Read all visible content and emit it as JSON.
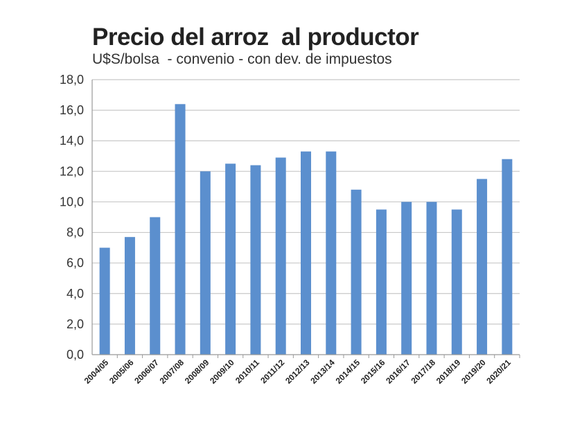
{
  "chart_data": {
    "type": "bar",
    "title": "Precio del arroz  al productor",
    "subtitle": "U$S/bolsa  - convenio - con dev. de impuestos",
    "xlabel": "",
    "ylabel": "",
    "ylim": [
      0,
      18
    ],
    "yticks": [
      "0,0",
      "2,0",
      "4,0",
      "6,0",
      "8,0",
      "10,0",
      "12,0",
      "14,0",
      "16,0",
      "18,0"
    ],
    "grid": true,
    "legend": "none",
    "categories": [
      "2004/05",
      "2005/06",
      "2006/07",
      "2007/08",
      "2008/09",
      "2009/10",
      "2010/11",
      "2011/12",
      "2012/13",
      "2013/14",
      "2014/15",
      "2015/16",
      "2016/17",
      "2017/18",
      "2018/19",
      "2019/20",
      "2020/21"
    ],
    "values": [
      7.0,
      7.7,
      9.0,
      16.4,
      12.0,
      12.5,
      12.4,
      12.9,
      13.3,
      13.3,
      10.8,
      9.5,
      10.0,
      10.0,
      9.5,
      11.5,
      12.8
    ],
    "colors": {
      "bar": "#5b8fce",
      "grid": "#c8c8c8",
      "axis": "#999999"
    }
  }
}
